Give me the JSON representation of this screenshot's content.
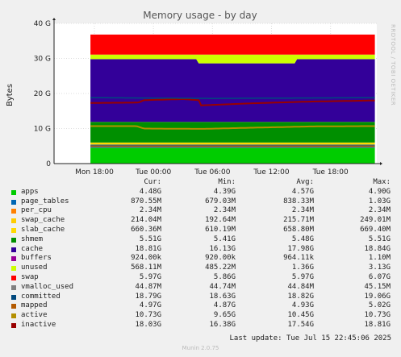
{
  "chart_data": {
    "type": "area",
    "title": "Memory usage - by day",
    "ylabel": "Bytes",
    "side_label": "RRDTOOL / TOBI OETIKER",
    "ylim": [
      0,
      40
    ],
    "y_unit": "G",
    "yticks": [
      {
        "v": 0,
        "label": "0"
      },
      {
        "v": 10,
        "label": "10 G"
      },
      {
        "v": 20,
        "label": "20 G"
      },
      {
        "v": 30,
        "label": "30 G"
      },
      {
        "v": 40,
        "label": "40 G"
      }
    ],
    "xticks": [
      "Mon 18:00",
      "Tue 00:00",
      "Tue 06:00",
      "Tue 12:00",
      "Tue 18:00"
    ],
    "x_hours": [
      18,
      24,
      30,
      36,
      42
    ],
    "x_range_hours": [
      13.9,
      46.7
    ],
    "data_start_hours": 17.6,
    "stack_top": 36.8,
    "unused_band": [
      31.1,
      29.8
    ],
    "unused_dip": {
      "from": 28.6,
      "to": 38.4,
      "bottom": 28.6
    },
    "apps_level": 4.6,
    "shmem_level": 11.9,
    "active": [
      {
        "h": 17.6,
        "v": 10.7
      },
      {
        "h": 22.3,
        "v": 10.7
      },
      {
        "h": 23.0,
        "v": 10.0
      },
      {
        "h": 29.0,
        "v": 9.9
      },
      {
        "h": 33.5,
        "v": 10.2
      },
      {
        "h": 40.0,
        "v": 10.6
      },
      {
        "h": 46.5,
        "v": 10.7
      }
    ],
    "inactive": [
      {
        "h": 17.6,
        "v": 17.3
      },
      {
        "h": 22.5,
        "v": 17.4
      },
      {
        "h": 23.0,
        "v": 18.1
      },
      {
        "h": 27.0,
        "v": 18.4
      },
      {
        "h": 28.6,
        "v": 18.1
      },
      {
        "h": 28.8,
        "v": 16.6
      },
      {
        "h": 34.0,
        "v": 17.2
      },
      {
        "h": 40.0,
        "v": 17.7
      },
      {
        "h": 46.5,
        "v": 18.0
      }
    ],
    "committed": [
      {
        "h": 17.6,
        "v": 18.8
      },
      {
        "h": 30.0,
        "v": 18.6
      },
      {
        "h": 46.5,
        "v": 18.8
      }
    ],
    "vmalloc_used_level": 4.6,
    "mapped_level": 5.0
  },
  "legend": {
    "headers": [
      "Cur:",
      "Min:",
      "Avg:",
      "Max:"
    ],
    "rows": [
      {
        "name": "apps",
        "color": "#00cc00",
        "cur": "4.48G",
        "min": "4.39G",
        "avg": "4.57G",
        "max": "4.90G"
      },
      {
        "name": "page_tables",
        "color": "#0066b3",
        "cur": "870.55M",
        "min": "679.03M",
        "avg": "838.33M",
        "max": "1.03G"
      },
      {
        "name": "per_cpu",
        "color": "#ff8000",
        "cur": "2.34M",
        "min": "2.34M",
        "avg": "2.34M",
        "max": "2.34M"
      },
      {
        "name": "swap_cache",
        "color": "#ffcc00",
        "cur": "214.04M",
        "min": "192.64M",
        "avg": "215.71M",
        "max": "249.01M"
      },
      {
        "name": "slab_cache",
        "color": "#ffd900",
        "cur": "660.36M",
        "min": "610.19M",
        "avg": "658.80M",
        "max": "669.40M"
      },
      {
        "name": "shmem",
        "color": "#008f00",
        "cur": "5.51G",
        "min": "5.41G",
        "avg": "5.48G",
        "max": "5.51G"
      },
      {
        "name": "cache",
        "color": "#330099",
        "cur": "18.81G",
        "min": "16.13G",
        "avg": "17.98G",
        "max": "18.84G"
      },
      {
        "name": "buffers",
        "color": "#990099",
        "cur": "924.00k",
        "min": "920.00k",
        "avg": "964.11k",
        "max": "1.10M"
      },
      {
        "name": "unused",
        "color": "#ccff00",
        "cur": "568.11M",
        "min": "485.22M",
        "avg": "1.36G",
        "max": "3.13G"
      },
      {
        "name": "swap",
        "color": "#ff0000",
        "cur": "5.97G",
        "min": "5.86G",
        "avg": "5.97G",
        "max": "6.07G"
      },
      {
        "name": "vmalloc_used",
        "color": "#808080",
        "cur": "44.87M",
        "min": "44.74M",
        "avg": "44.84M",
        "max": "45.15M"
      },
      {
        "name": "committed",
        "color": "#00487d",
        "cur": "18.79G",
        "min": "18.63G",
        "avg": "18.82G",
        "max": "19.06G"
      },
      {
        "name": "mapped",
        "color": "#b35a00",
        "cur": "4.97G",
        "min": "4.87G",
        "avg": "4.93G",
        "max": "5.02G"
      },
      {
        "name": "active",
        "color": "#b38f00",
        "cur": "10.73G",
        "min": "9.65G",
        "avg": "10.45G",
        "max": "10.73G"
      },
      {
        "name": "inactive",
        "color": "#990000",
        "cur": "18.03G",
        "min": "16.38G",
        "avg": "17.54G",
        "max": "18.81G"
      }
    ]
  },
  "footer": {
    "last_update": "Last update: Tue Jul 15 22:45:06 2025",
    "munin": "Munin 2.0.75"
  }
}
